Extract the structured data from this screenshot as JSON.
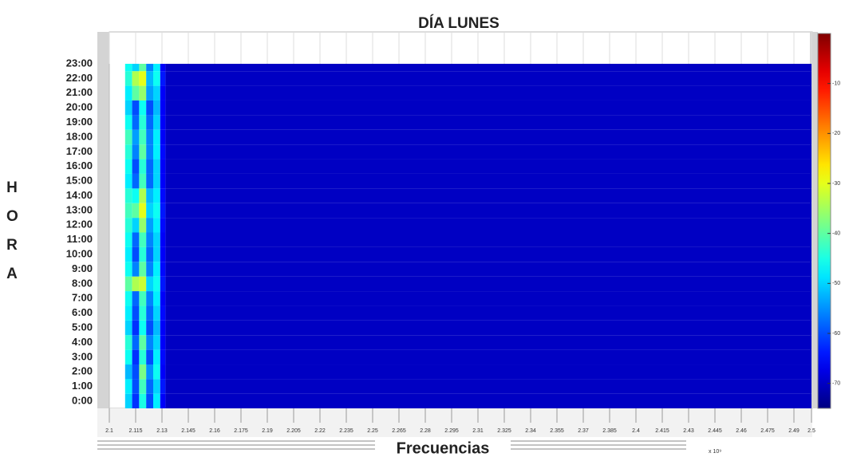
{
  "chart_data": {
    "type": "heatmap",
    "title": "DÍA LUNES",
    "xlabel": "Frecuencias",
    "ylabel": "HORA",
    "x_multiplier": "x 10⁹",
    "bins": [
      2.109,
      2.113,
      2.117,
      2.121,
      2.125,
      2.129,
      2.132,
      2.5
    ],
    "categories": [
      "0:00",
      "1:00",
      "2:00",
      "3:00",
      "4:00",
      "5:00",
      "6:00",
      "7:00",
      "8:00",
      "9:00",
      "10:00",
      "11:00",
      "12:00",
      "13:00",
      "14:00",
      "15:00",
      "16:00",
      "17:00",
      "18:00",
      "19:00",
      "20:00",
      "21:00",
      "22:00",
      "23:00"
    ],
    "values": [
      [
        -50,
        -62,
        -45,
        -60,
        -48,
        -66,
        -70
      ],
      [
        -48,
        -60,
        -42,
        -58,
        -50,
        -64,
        -70
      ],
      [
        -52,
        -60,
        -38,
        -55,
        -46,
        -66,
        -70
      ],
      [
        -46,
        -62,
        -44,
        -60,
        -48,
        -65,
        -70
      ],
      [
        -44,
        -58,
        -40,
        -56,
        -50,
        -66,
        -70
      ],
      [
        -50,
        -62,
        -46,
        -60,
        -52,
        -66,
        -70
      ],
      [
        -48,
        -60,
        -44,
        -58,
        -50,
        -65,
        -70
      ],
      [
        -46,
        -58,
        -42,
        -56,
        -48,
        -66,
        -70
      ],
      [
        -40,
        -34,
        -32,
        -50,
        -46,
        -64,
        -70
      ],
      [
        -46,
        -56,
        -40,
        -56,
        -48,
        -65,
        -70
      ],
      [
        -48,
        -60,
        -44,
        -58,
        -50,
        -66,
        -70
      ],
      [
        -46,
        -58,
        -42,
        -56,
        -50,
        -66,
        -70
      ],
      [
        -44,
        -50,
        -36,
        -54,
        -48,
        -65,
        -70
      ],
      [
        -42,
        -40,
        -30,
        -50,
        -46,
        -64,
        -70
      ],
      [
        -44,
        -46,
        -34,
        -52,
        -48,
        -65,
        -70
      ],
      [
        -48,
        -58,
        -42,
        -58,
        -50,
        -66,
        -70
      ],
      [
        -46,
        -60,
        -44,
        -58,
        -50,
        -66,
        -70
      ],
      [
        -44,
        -56,
        -40,
        -56,
        -48,
        -65,
        -70
      ],
      [
        -42,
        -54,
        -42,
        -56,
        -48,
        -66,
        -70
      ],
      [
        -46,
        -58,
        -44,
        -58,
        -50,
        -66,
        -70
      ],
      [
        -50,
        -60,
        -46,
        -60,
        -52,
        -66,
        -70
      ],
      [
        -48,
        -40,
        -36,
        -54,
        -50,
        -66,
        -70
      ],
      [
        -44,
        -34,
        -30,
        -52,
        -46,
        -64,
        -70
      ],
      [
        -46,
        -50,
        -40,
        -56,
        -48,
        -66,
        -70
      ]
    ],
    "xlim": [
      2.1,
      2.5
    ],
    "xticks": [
      2.1,
      2.115,
      2.13,
      2.145,
      2.16,
      2.175,
      2.19,
      2.205,
      2.22,
      2.235,
      2.25,
      2.265,
      2.28,
      2.295,
      2.31,
      2.325,
      2.34,
      2.355,
      2.37,
      2.385,
      2.4,
      2.415,
      2.43,
      2.445,
      2.46,
      2.475,
      2.49,
      2.5
    ],
    "colormap": "jet",
    "clim": [
      -75,
      0
    ],
    "cticks": [
      -10,
      -20,
      -30,
      -40,
      -50,
      -60,
      -70
    ]
  }
}
